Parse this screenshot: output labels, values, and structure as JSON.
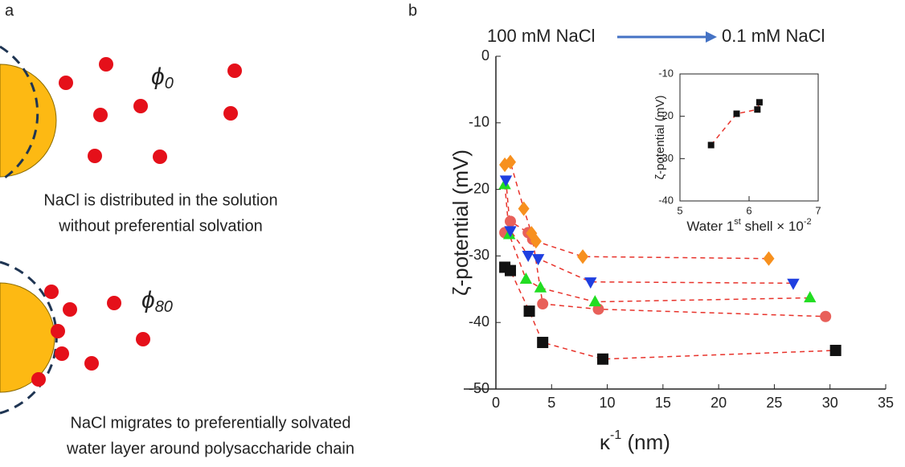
{
  "panel_a": {
    "label": "a",
    "top": {
      "symbol": "ϕ",
      "subscript": "0",
      "caption": [
        "NaCl is distributed in the solution",
        "without preferential solvation"
      ]
    },
    "bottom": {
      "symbol": "ϕ",
      "subscript": "80",
      "caption": [
        "NaCl migrates to preferentially solvated",
        "water layer around polysaccharide chain"
      ]
    }
  },
  "panel_b": {
    "label": "b",
    "from": "100 mM NaCl",
    "to": "0.1 mM NaCl"
  },
  "chart_data": [
    {
      "type": "scatter",
      "ylabel": "ζ-potential (mV)",
      "xlabel": {
        "main": "κ",
        "sup": "-1",
        "rest": " (nm)"
      },
      "xlim": [
        -3,
        35
      ],
      "ylim": [
        -50,
        0
      ],
      "xticks": [
        0,
        5,
        10,
        15,
        20,
        25,
        30,
        35
      ],
      "yticks": [
        -50,
        -40,
        -30,
        -20,
        -10,
        0
      ],
      "fit_color": "#e8332b",
      "series": [
        {
          "color": "#111111",
          "marker": "square",
          "x": [
            0.8,
            1.3,
            3.0,
            4.2,
            9.6,
            30.5
          ],
          "values": [
            -31.7,
            -32.2,
            -38.3,
            -43.0,
            -45.5,
            -44.2
          ]
        },
        {
          "color": "#e8605a",
          "marker": "circle",
          "x": [
            0.8,
            1.3,
            2.9,
            3.3,
            4.2,
            9.2,
            29.6
          ],
          "values": [
            -26.5,
            -24.8,
            -26.5,
            -27.5,
            -37.2,
            -38.0,
            -39.1
          ]
        },
        {
          "color": "#22dd22",
          "marker": "triangle-up",
          "x": [
            0.8,
            1.2,
            2.7,
            4.0,
            8.9,
            28.2
          ],
          "values": [
            -19.3,
            -26.8,
            -33.5,
            -34.8,
            -36.9,
            -36.3
          ]
        },
        {
          "color": "#1f3fe0",
          "marker": "triangle-down",
          "x": [
            0.9,
            1.3,
            2.9,
            3.8,
            8.5,
            26.7
          ],
          "values": [
            -18.6,
            -26.2,
            -29.9,
            -30.4,
            -33.9,
            -34.1
          ]
        },
        {
          "color": "#f7901e",
          "marker": "diamond",
          "x": [
            0.8,
            1.3,
            2.5,
            3.2,
            3.6,
            7.8,
            24.5
          ],
          "values": [
            -16.3,
            -15.9,
            -22.9,
            -26.6,
            -27.8,
            -30.1,
            -30.4
          ]
        }
      ]
    },
    {
      "type": "scatter",
      "ylabel": "ζ-potential (mV)",
      "xlabel": {
        "main": "Water 1",
        "sup": "st",
        "rest": " shell × 10",
        "sup2": "-2"
      },
      "xlim": [
        5,
        7
      ],
      "ylim": [
        -40,
        -10
      ],
      "xticks": [
        5,
        6,
        7
      ],
      "yticks": [
        -40,
        -30,
        -20,
        -10
      ],
      "fit_color": "#e8332b",
      "series": [
        {
          "color": "#111111",
          "marker": "square",
          "x": [
            5.45,
            5.82,
            6.12,
            6.15
          ],
          "values": [
            -26.8,
            -19.4,
            -18.4,
            -16.7
          ]
        }
      ]
    }
  ]
}
